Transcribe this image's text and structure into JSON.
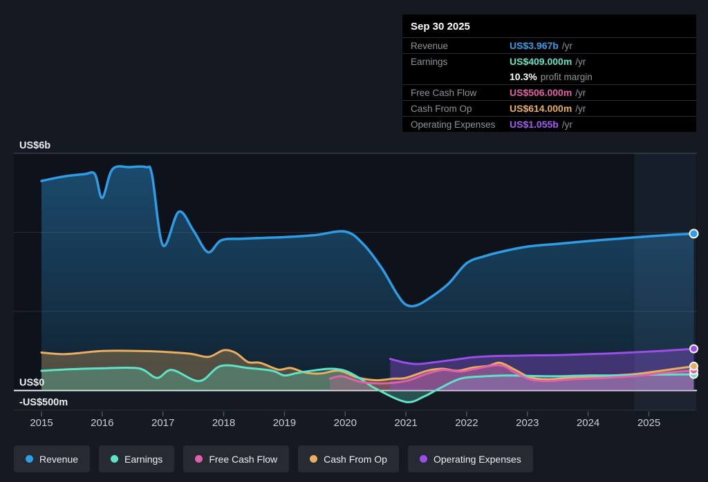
{
  "page": {
    "background": "#151a22"
  },
  "tooltip": {
    "date": "Sep 30 2025",
    "rows": [
      {
        "label": "Revenue",
        "value": "US$3.967b",
        "suffix": "/yr",
        "color": "#2f9fe8",
        "margin_row": false
      },
      {
        "label": "Earnings",
        "value": "US$409.000m",
        "suffix": "/yr",
        "color": "#66e2c4",
        "margin_row": false
      },
      {
        "label": "",
        "value": "10.3%",
        "suffix": "profit margin",
        "color": "#ffffff",
        "margin_row": true
      },
      {
        "label": "Free Cash Flow",
        "value": "US$506.000m",
        "suffix": "/yr",
        "color": "#e061a8",
        "margin_row": false
      },
      {
        "label": "Cash From Op",
        "value": "US$614.000m",
        "suffix": "/yr",
        "color": "#e9ae5e",
        "margin_row": false
      },
      {
        "label": "Operating Expenses",
        "value": "US$1.055b",
        "suffix": "/yr",
        "color": "#a55cf5",
        "margin_row": false
      }
    ]
  },
  "axes": {
    "y_labels": [
      {
        "text": "US$6b",
        "value": 6
      },
      {
        "text": "US$0",
        "value": 0
      },
      {
        "text": "-US$500m",
        "value": -0.5
      }
    ],
    "x_years": [
      "2015",
      "2016",
      "2017",
      "2018",
      "2019",
      "2020",
      "2021",
      "2022",
      "2023",
      "2024",
      "2025"
    ]
  },
  "legend": [
    {
      "label": "Revenue",
      "color": "#2e9de6"
    },
    {
      "label": "Earnings",
      "color": "#5fe3c8"
    },
    {
      "label": "Free Cash Flow",
      "color": "#e061a8"
    },
    {
      "label": "Cash From Op",
      "color": "#e9ae5e"
    },
    {
      "label": "Operating Expenses",
      "color": "#9b4fe8"
    }
  ],
  "chart_data": {
    "type": "area",
    "title": "",
    "x_unit": "year",
    "y_unit": "US$ billions",
    "x_range": [
      2015,
      2025.74
    ],
    "ylim": [
      -0.5,
      6
    ],
    "y_gridlines": [
      6,
      4,
      2,
      0,
      -0.5
    ],
    "grid": true,
    "legend_position": "bottom",
    "forecast_band": {
      "start": 2024.76,
      "end": 2025.78
    },
    "series": [
      {
        "name": "Revenue",
        "color": "#2e9de6",
        "width": 3.5,
        "fill_opacity": 0.0,
        "gradient": true,
        "points": [
          [
            2015.0,
            5.3
          ],
          [
            2015.35,
            5.41
          ],
          [
            2015.7,
            5.47
          ],
          [
            2015.88,
            5.47
          ],
          [
            2016.0,
            4.87
          ],
          [
            2016.17,
            5.6
          ],
          [
            2016.45,
            5.65
          ],
          [
            2016.72,
            5.65
          ],
          [
            2016.82,
            5.45
          ],
          [
            2017.0,
            3.67
          ],
          [
            2017.26,
            4.52
          ],
          [
            2017.5,
            4.05
          ],
          [
            2017.74,
            3.5
          ],
          [
            2017.96,
            3.8
          ],
          [
            2018.3,
            3.84
          ],
          [
            2019.0,
            3.88
          ],
          [
            2019.5,
            3.93
          ],
          [
            2020.0,
            4.02
          ],
          [
            2020.3,
            3.7
          ],
          [
            2020.6,
            3.1
          ],
          [
            2020.85,
            2.45
          ],
          [
            2021.0,
            2.17
          ],
          [
            2021.17,
            2.15
          ],
          [
            2021.4,
            2.35
          ],
          [
            2021.7,
            2.7
          ],
          [
            2022.0,
            3.22
          ],
          [
            2022.3,
            3.4
          ],
          [
            2022.6,
            3.52
          ],
          [
            2023.0,
            3.64
          ],
          [
            2023.5,
            3.71
          ],
          [
            2024.0,
            3.78
          ],
          [
            2024.5,
            3.84
          ],
          [
            2025.0,
            3.9
          ],
          [
            2025.4,
            3.94
          ],
          [
            2025.74,
            3.967
          ]
        ]
      },
      {
        "name": "Cash From Op",
        "color": "#e9ae5e",
        "width": 3,
        "fill_opacity": 0.3,
        "gradient": false,
        "points": [
          [
            2015.0,
            0.96
          ],
          [
            2015.4,
            0.92
          ],
          [
            2016.0,
            1.0
          ],
          [
            2016.6,
            1.0
          ],
          [
            2017.0,
            0.98
          ],
          [
            2017.45,
            0.93
          ],
          [
            2017.75,
            0.85
          ],
          [
            2018.0,
            1.02
          ],
          [
            2018.2,
            0.95
          ],
          [
            2018.4,
            0.72
          ],
          [
            2018.6,
            0.7
          ],
          [
            2018.9,
            0.53
          ],
          [
            2019.1,
            0.57
          ],
          [
            2019.35,
            0.45
          ],
          [
            2019.6,
            0.43
          ],
          [
            2019.9,
            0.5
          ],
          [
            2020.2,
            0.33
          ],
          [
            2020.5,
            0.26
          ],
          [
            2020.8,
            0.3
          ],
          [
            2021.0,
            0.32
          ],
          [
            2021.35,
            0.5
          ],
          [
            2021.6,
            0.55
          ],
          [
            2021.85,
            0.5
          ],
          [
            2022.1,
            0.58
          ],
          [
            2022.35,
            0.62
          ],
          [
            2022.55,
            0.7
          ],
          [
            2022.8,
            0.52
          ],
          [
            2023.05,
            0.33
          ],
          [
            2023.35,
            0.28
          ],
          [
            2023.7,
            0.33
          ],
          [
            2024.0,
            0.35
          ],
          [
            2024.4,
            0.38
          ],
          [
            2024.8,
            0.42
          ],
          [
            2025.2,
            0.5
          ],
          [
            2025.74,
            0.614
          ]
        ]
      },
      {
        "name": "Earnings",
        "color": "#5fe3c8",
        "width": 3,
        "fill_opacity": 0.28,
        "gradient": false,
        "points": [
          [
            2015.0,
            0.5
          ],
          [
            2015.5,
            0.54
          ],
          [
            2016.0,
            0.56
          ],
          [
            2016.6,
            0.56
          ],
          [
            2016.9,
            0.32
          ],
          [
            2017.15,
            0.52
          ],
          [
            2017.6,
            0.24
          ],
          [
            2017.95,
            0.62
          ],
          [
            2018.4,
            0.57
          ],
          [
            2018.8,
            0.5
          ],
          [
            2019.0,
            0.38
          ],
          [
            2019.2,
            0.44
          ],
          [
            2019.45,
            0.5
          ],
          [
            2019.75,
            0.55
          ],
          [
            2020.0,
            0.5
          ],
          [
            2020.25,
            0.3
          ],
          [
            2020.5,
            0.05
          ],
          [
            2021.0,
            -0.29
          ],
          [
            2021.3,
            -0.15
          ],
          [
            2021.55,
            0.05
          ],
          [
            2021.9,
            0.3
          ],
          [
            2022.3,
            0.36
          ],
          [
            2022.7,
            0.38
          ],
          [
            2023.0,
            0.37
          ],
          [
            2023.5,
            0.36
          ],
          [
            2024.0,
            0.38
          ],
          [
            2024.5,
            0.38
          ],
          [
            2025.0,
            0.4
          ],
          [
            2025.74,
            0.409
          ]
        ]
      },
      {
        "name": "Free Cash Flow",
        "color": "#e061a8",
        "width": 3,
        "fill_opacity": 0.28,
        "gradient": false,
        "points": [
          [
            2019.75,
            0.3
          ],
          [
            2019.95,
            0.36
          ],
          [
            2020.25,
            0.22
          ],
          [
            2020.6,
            0.18
          ],
          [
            2021.0,
            0.24
          ],
          [
            2021.3,
            0.4
          ],
          [
            2021.6,
            0.52
          ],
          [
            2021.9,
            0.48
          ],
          [
            2022.15,
            0.55
          ],
          [
            2022.55,
            0.64
          ],
          [
            2022.8,
            0.45
          ],
          [
            2023.05,
            0.28
          ],
          [
            2023.35,
            0.24
          ],
          [
            2023.7,
            0.28
          ],
          [
            2024.0,
            0.3
          ],
          [
            2024.4,
            0.33
          ],
          [
            2024.8,
            0.37
          ],
          [
            2025.2,
            0.44
          ],
          [
            2025.74,
            0.506
          ]
        ]
      },
      {
        "name": "Operating Expenses",
        "color": "#9b4fe8",
        "width": 3,
        "fill_opacity": 0.34,
        "gradient": false,
        "points": [
          [
            2020.74,
            0.8
          ],
          [
            2021.0,
            0.7
          ],
          [
            2021.2,
            0.67
          ],
          [
            2021.5,
            0.72
          ],
          [
            2021.8,
            0.78
          ],
          [
            2022.1,
            0.84
          ],
          [
            2022.4,
            0.87
          ],
          [
            2022.8,
            0.88
          ],
          [
            2023.2,
            0.89
          ],
          [
            2023.6,
            0.9
          ],
          [
            2024.0,
            0.92
          ],
          [
            2024.4,
            0.94
          ],
          [
            2024.8,
            0.97
          ],
          [
            2025.2,
            1.0
          ],
          [
            2025.74,
            1.055
          ]
        ]
      }
    ]
  }
}
